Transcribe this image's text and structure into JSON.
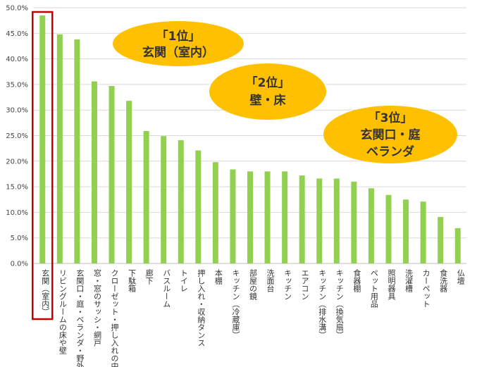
{
  "chart_data": {
    "type": "bar",
    "title": "",
    "xlabel": "",
    "ylabel": "",
    "ylim": [
      0,
      50
    ],
    "y_ticks": [
      0,
      5,
      10,
      15,
      20,
      25,
      30,
      35,
      40,
      45,
      50
    ],
    "y_tick_labels": [
      "0.0%",
      "5.0%",
      "10.0%",
      "15.0%",
      "20.0%",
      "25.0%",
      "30.0%",
      "35.0%",
      "40.0%",
      "45.0%",
      "50.0%"
    ],
    "grid": true,
    "categories": [
      "玄関（室内）",
      "リビングルームの床や壁",
      "玄関口・庭・ベランダ・野外",
      "窓・窓のサッシ・網戸",
      "クローゼット・押し入れの中",
      "下駄箱",
      "廊下",
      "バスルーム",
      "トイレ",
      "押し入れ・収納タンス",
      "本棚",
      "キッチン（冷蔵庫）",
      "部屋の鏡",
      "洗面台",
      "キッチン",
      "エアコン",
      "キッチン（排水溝）",
      "キッチン（換気扇）",
      "食器棚",
      "ペット用品",
      "照明器具",
      "洗濯槽",
      "カーペット",
      "食洗器",
      "仏壇"
    ],
    "values": [
      48.5,
      44.8,
      43.8,
      35.6,
      34.7,
      31.8,
      25.9,
      24.9,
      24.1,
      22.1,
      19.8,
      18.4,
      18.0,
      18.0,
      18.0,
      17.2,
      16.6,
      16.6,
      16.0,
      14.7,
      13.4,
      12.5,
      12.1,
      9.1,
      6.9
    ],
    "bar_color": "#92d050",
    "highlight_index": 0,
    "highlight_color": "#c00000"
  },
  "callouts": [
    {
      "line1": "「1位」",
      "line2": "玄関（室内）",
      "line3": ""
    },
    {
      "line1": "「2位」",
      "line2": "壁・床",
      "line3": ""
    },
    {
      "line1": "「3位」",
      "line2": "玄関口・庭",
      "line3": "ベランダ"
    }
  ],
  "callout_color": "#ffc000"
}
